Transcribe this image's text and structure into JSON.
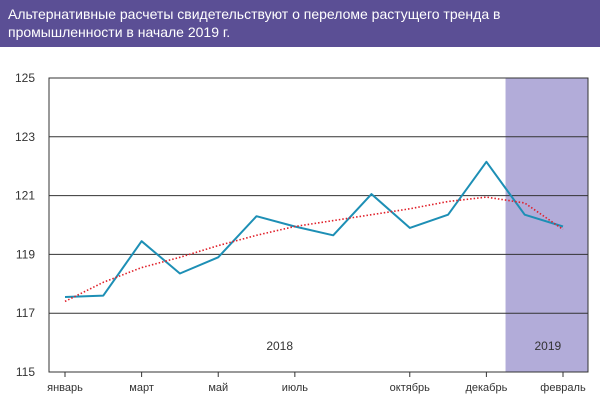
{
  "chart_data": {
    "type": "line",
    "title": "Альтернативные расчеты свидетельствуют о переломе растущего тренда в промышленности в начале 2019 г.",
    "ylim": [
      115,
      125
    ],
    "yticks": [
      "115",
      "117",
      "119",
      "121",
      "123",
      "125"
    ],
    "xtick_labels": [
      "январь",
      "март",
      "май",
      "июль",
      "октябрь",
      "декабрь",
      "февраль"
    ],
    "xtick_index": [
      0,
      2,
      4,
      6,
      9,
      11,
      13
    ],
    "year_labels": [
      {
        "label": "2018",
        "center_index": 5.5
      },
      {
        "label": "2019",
        "center_index": 12.5
      }
    ],
    "highlight": {
      "start_index": 11.5,
      "end_index": 13.5,
      "color": "#b2acd9"
    },
    "series": [
      {
        "name": "index",
        "color": "#1d8fb5",
        "style": "solid",
        "values": [
          117.55,
          117.6,
          119.45,
          118.35,
          118.9,
          120.3,
          119.95,
          119.65,
          121.05,
          119.9,
          120.35,
          122.15,
          120.35,
          119.95
        ]
      },
      {
        "name": "trend",
        "color": "#e0202a",
        "style": "dotted",
        "values": [
          117.4,
          118.05,
          118.55,
          118.9,
          119.3,
          119.65,
          119.95,
          120.15,
          120.35,
          120.55,
          120.8,
          120.95,
          120.75,
          119.85
        ]
      }
    ]
  }
}
